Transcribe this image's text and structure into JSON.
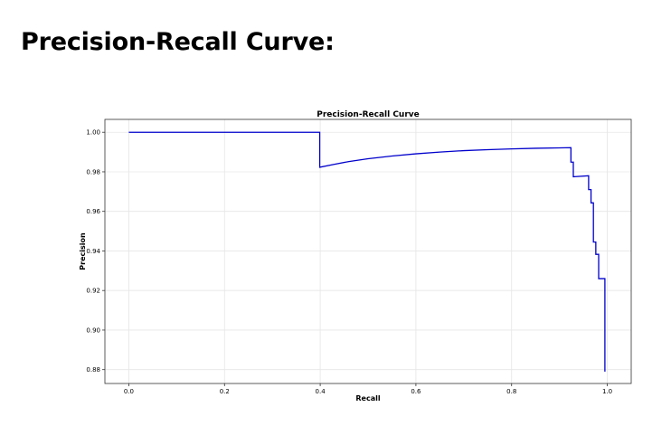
{
  "page": {
    "heading": "Precision-Recall Curve:"
  },
  "chart_data": {
    "type": "line",
    "title": "Precision-Recall Curve",
    "xlabel": "Recall",
    "ylabel": "Precision",
    "xlim": [
      -0.05,
      1.05
    ],
    "ylim": [
      0.873,
      1.0065
    ],
    "xticks": [
      0.0,
      0.2,
      0.4,
      0.6,
      0.8,
      1.0
    ],
    "xtick_labels": [
      "0.0",
      "0.2",
      "0.4",
      "0.6",
      "0.8",
      "1.0"
    ],
    "yticks": [
      0.88,
      0.9,
      0.92,
      0.94,
      0.96,
      0.98,
      1.0
    ],
    "ytick_labels": [
      "0.88",
      "0.90",
      "0.92",
      "0.94",
      "0.96",
      "0.98",
      "1.00"
    ],
    "grid": true,
    "series": [
      {
        "color": "#0000cc",
        "x": [
          0.0,
          0.399,
          0.399,
          0.43,
          0.46,
          0.5,
          0.55,
          0.6,
          0.65,
          0.7,
          0.75,
          0.8,
          0.85,
          0.9,
          0.924,
          0.924,
          0.929,
          0.929,
          0.961,
          0.961,
          0.966,
          0.966,
          0.971,
          0.971,
          0.976,
          0.976,
          0.982,
          0.982,
          0.988,
          0.988,
          0.995,
          0.995
        ],
        "y": [
          1.0,
          1.0,
          0.9823,
          0.9838,
          0.9852,
          0.9866,
          0.988,
          0.9891,
          0.99,
          0.9907,
          0.9912,
          0.9916,
          0.9919,
          0.9921,
          0.9922,
          0.9849,
          0.9849,
          0.9775,
          0.978,
          0.971,
          0.971,
          0.9643,
          0.9643,
          0.9445,
          0.9445,
          0.9383,
          0.9383,
          0.926,
          0.926,
          0.926,
          0.926,
          0.879
        ]
      }
    ]
  }
}
